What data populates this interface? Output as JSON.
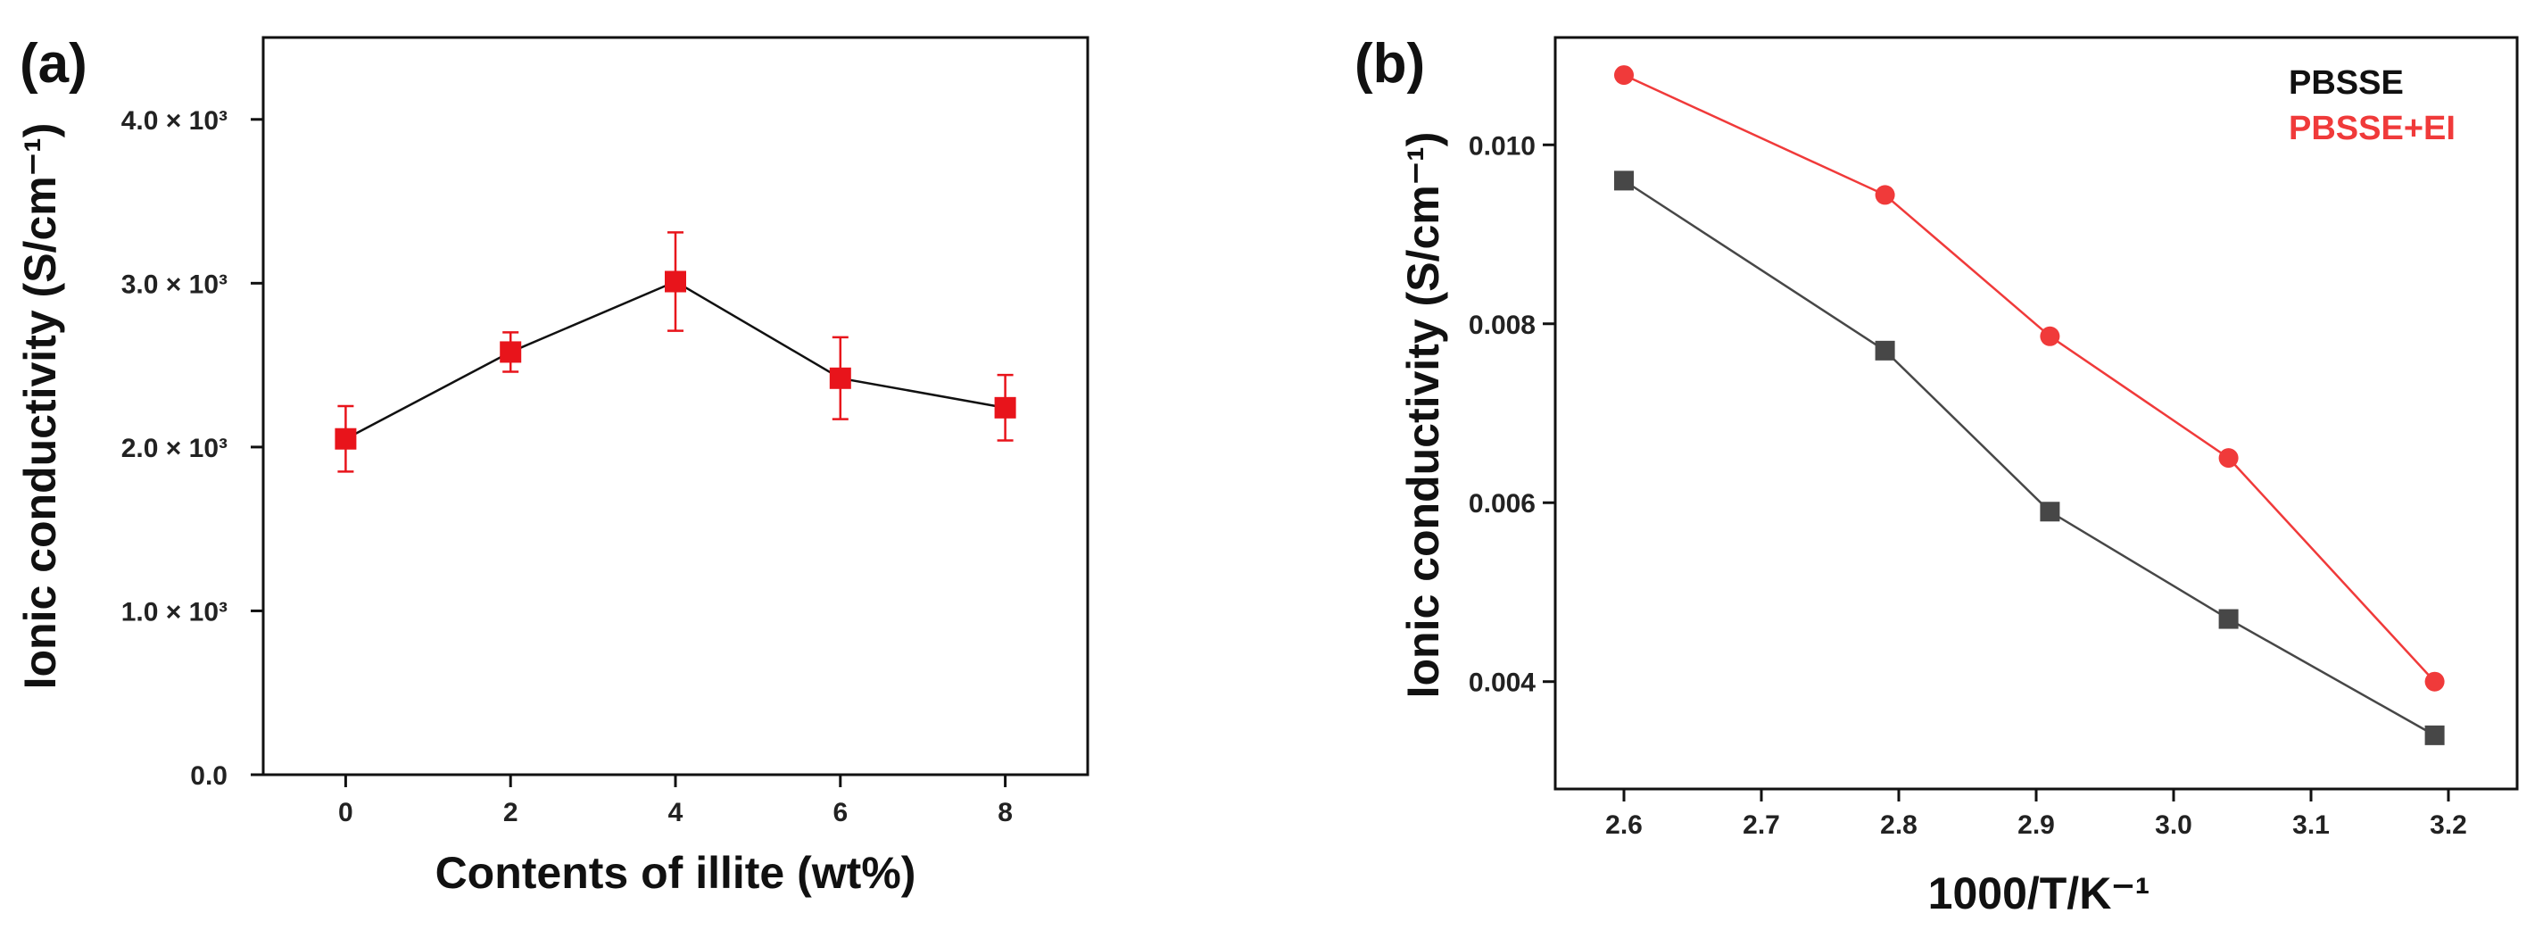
{
  "figure": {
    "panels": [
      "(a)",
      "(b)"
    ]
  },
  "chart_data": [
    {
      "type": "line",
      "panel_label": "(a)",
      "xlabel": "Contents of illite (wt%)",
      "ylabel": "Ionic conductivity (S/cm⁻¹)",
      "xlim": [
        -1,
        9
      ],
      "ylim": [
        0,
        4500
      ],
      "x_ticks": [
        0,
        2,
        4,
        6,
        8
      ],
      "x_tick_labels": [
        "0",
        "2",
        "4",
        "6",
        "8"
      ],
      "y_ticks": [
        0,
        1000,
        2000,
        3000,
        4000
      ],
      "y_tick_labels": [
        "0.0",
        "1.0 × 10³",
        "2.0 × 10³",
        "3.0 × 10³",
        "4.0 × 10³"
      ],
      "series": [
        {
          "name": "Ionic conductivity",
          "x": [
            0,
            2,
            4,
            6,
            8
          ],
          "y": [
            2050,
            2580,
            3010,
            2420,
            2240
          ],
          "error": [
            200,
            120,
            300,
            250,
            200
          ],
          "marker": "square",
          "marker_color": "#e8141b",
          "line_color": "#111111"
        }
      ]
    },
    {
      "type": "line",
      "panel_label": "(b)",
      "xlabel": "1000/T/K⁻¹",
      "ylabel": "Ionic conductivity (S/cm⁻¹)",
      "xlim": [
        2.55,
        3.25
      ],
      "ylim": [
        0.0028,
        0.0112
      ],
      "x_ticks": [
        2.6,
        2.7,
        2.8,
        2.9,
        3.0,
        3.1,
        3.2
      ],
      "x_tick_labels": [
        "2.6",
        "2.7",
        "2.8",
        "2.9",
        "3.0",
        "3.1",
        "3.2"
      ],
      "y_ticks": [
        0.004,
        0.006,
        0.008,
        0.01
      ],
      "y_tick_labels": [
        "0.004",
        "0.006",
        "0.008",
        "0.010"
      ],
      "legend_position": "top-right",
      "series": [
        {
          "name": "PBSSE",
          "x": [
            2.6,
            2.79,
            2.91,
            3.04,
            3.19
          ],
          "y": [
            0.0096,
            0.0077,
            0.0059,
            0.0047,
            0.0034
          ],
          "marker": "square",
          "color": "#474747"
        },
        {
          "name": "PBSSE+EI",
          "x": [
            2.6,
            2.79,
            2.91,
            3.04,
            3.19
          ],
          "y": [
            0.01078,
            0.00944,
            0.00786,
            0.0065,
            0.004
          ],
          "marker": "circle",
          "color": "#f03a3a"
        }
      ]
    }
  ]
}
